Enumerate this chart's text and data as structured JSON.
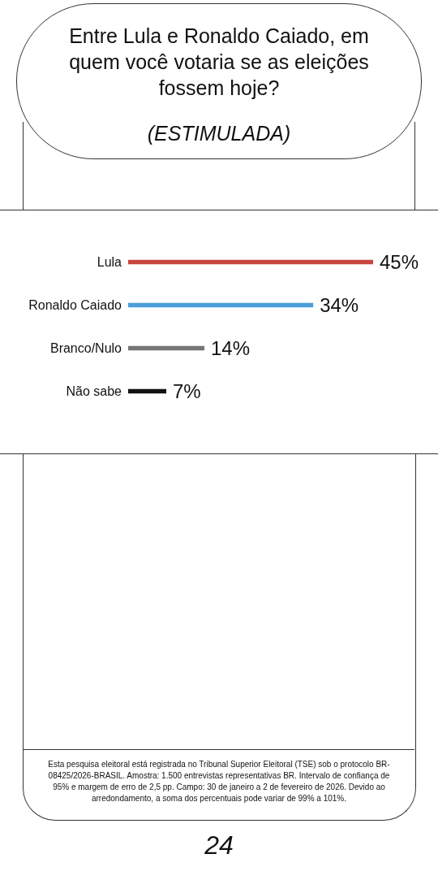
{
  "chart_data": {
    "type": "bar",
    "orientation": "horizontal",
    "relative": false,
    "title": "Entre Lula e Ronaldo Caiado, em quem você votaria se as eleições fossem hoje?",
    "subtitle": "(ESTIMULADA)",
    "categories": [
      "Lula",
      "Ronaldo Caiado",
      "Branco/Nulo",
      "Não sabe"
    ],
    "values": [
      45,
      34,
      14,
      7
    ],
    "colors": [
      "#c8473d",
      "#4a9edb",
      "#767676",
      "#111111"
    ],
    "value_labels": [
      "45%",
      "34%",
      "14%",
      "7%"
    ],
    "grid": false,
    "legend": false,
    "tick_labels": "y",
    "annotations": [
      "Esta pesquisa eleitoral está registrada no Tribunal Superior Eleitoral (TSE) sob o protocolo BR-08425/2026-BRASIL. Amostra: 1.500 entrevistas representativas BR. Intervalo de confiança de 95% e margem de erro de 2,5 pp. Campo: 30 de janeiro a 2 de fevereiro de 2026. Devido ao arredondamento, a soma dos percentuais pode variar de 99% a 101%.",
      "24"
    ]
  }
}
